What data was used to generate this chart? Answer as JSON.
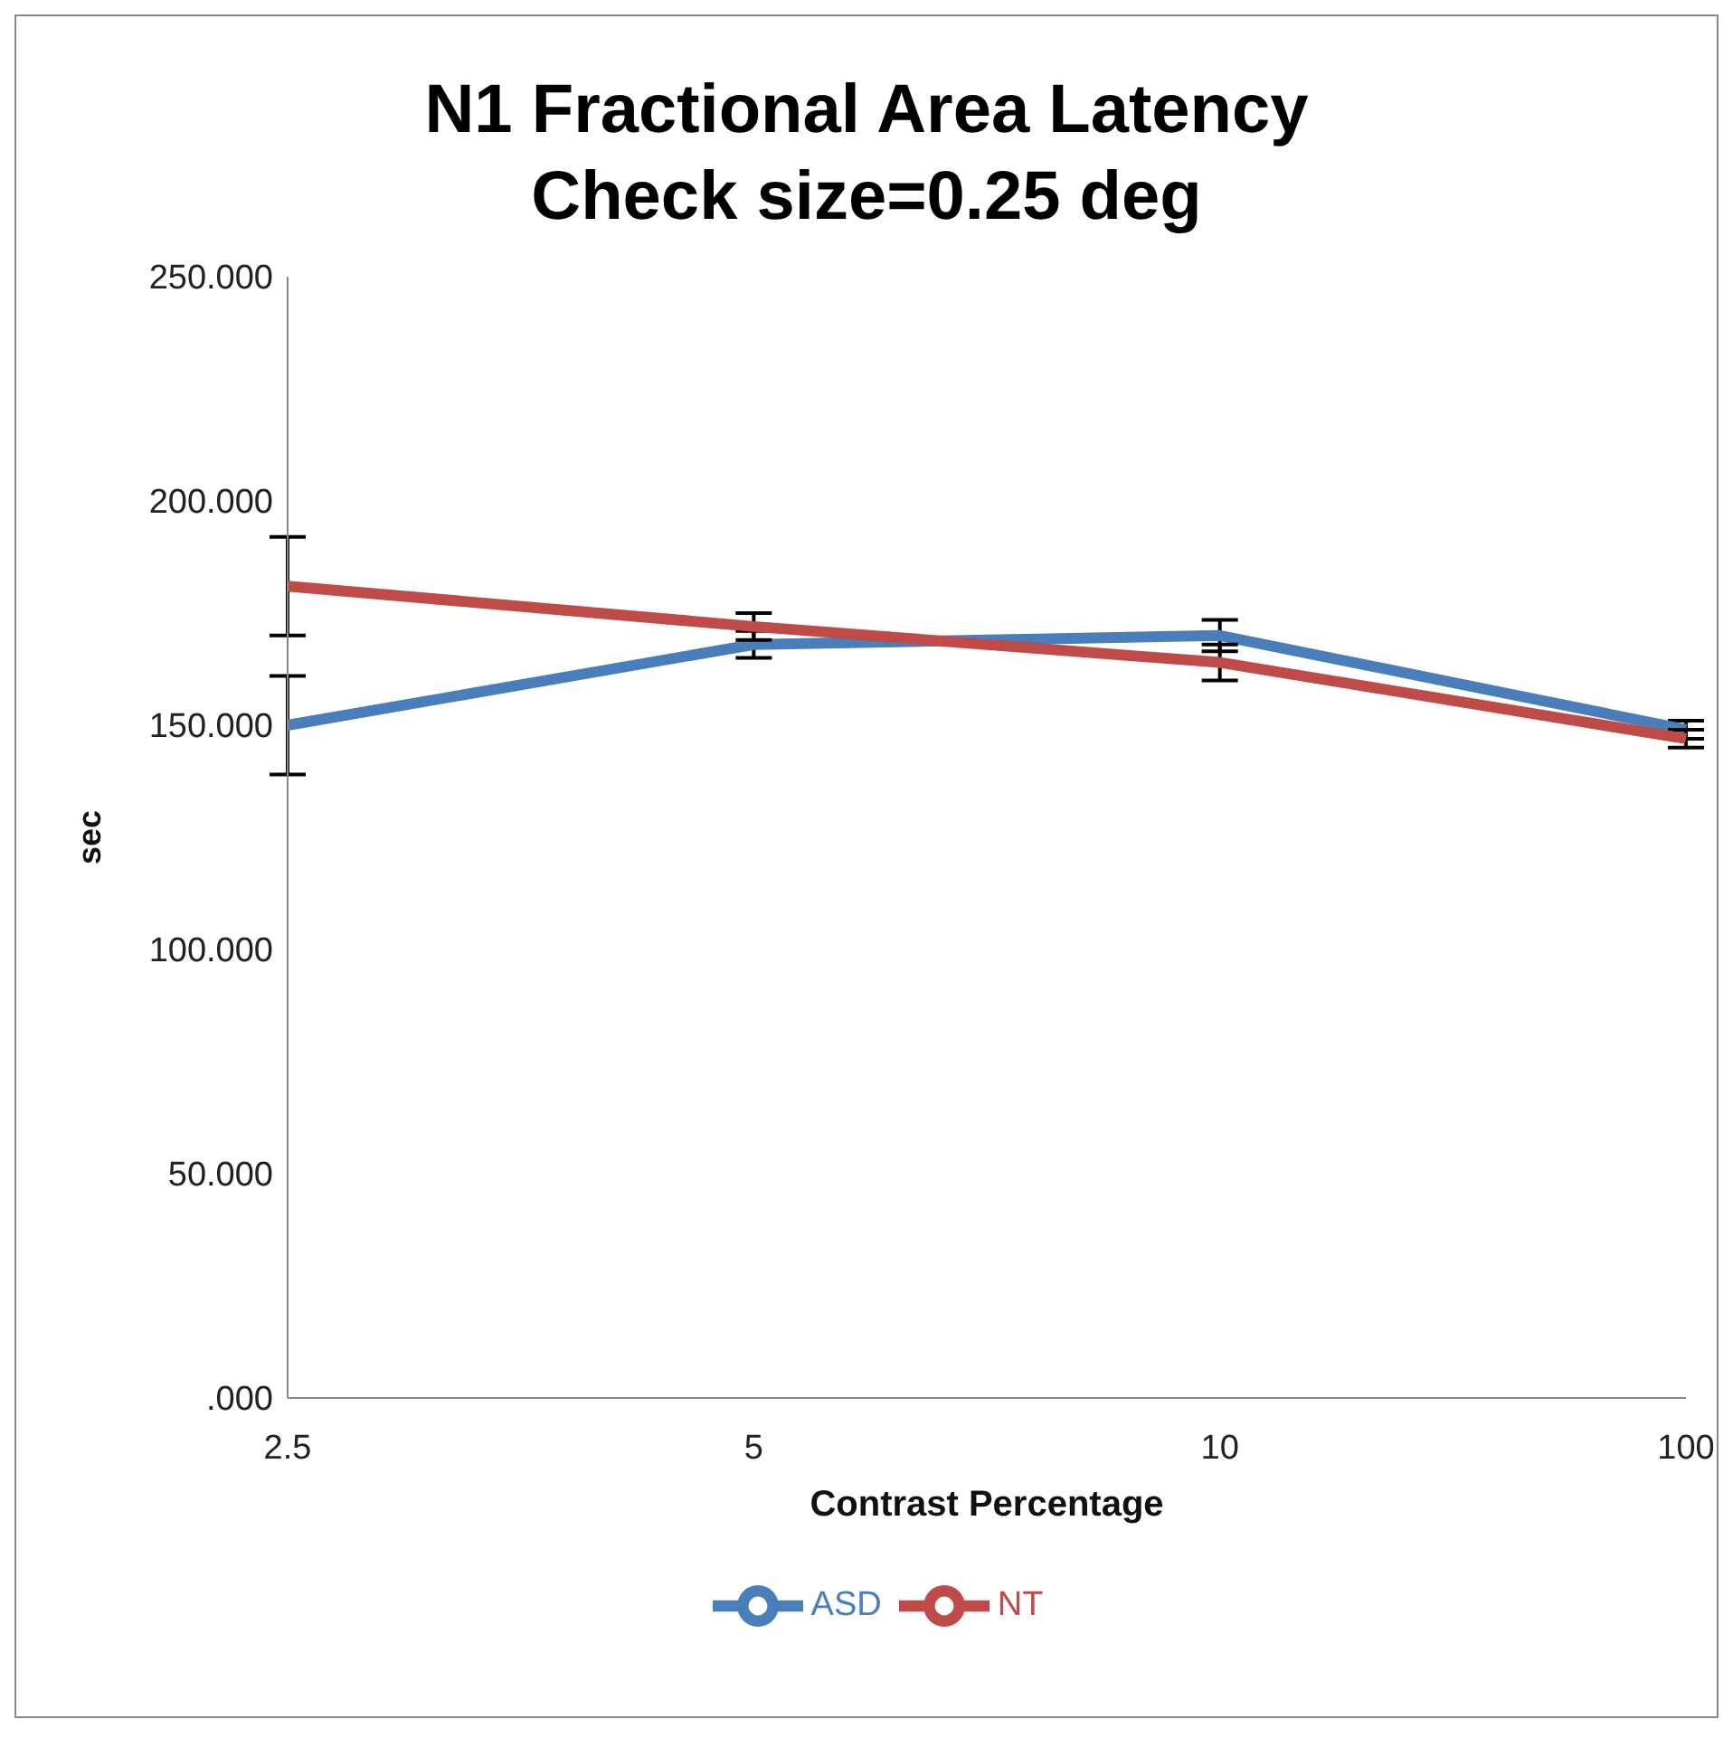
{
  "chart_data": {
    "type": "line",
    "title": "N1 Fractional Area Latency\nCheck size=0.25 deg",
    "xlabel": "Contrast Percentage",
    "ylabel": "sec",
    "categories": [
      "2.5",
      "5",
      "10",
      "100"
    ],
    "series": [
      {
        "name": "ASD",
        "color": "#4a7ebb",
        "values": [
          150,
          168,
          170,
          149
        ],
        "errors": [
          11,
          3,
          3.5,
          2
        ]
      },
      {
        "name": "NT",
        "color": "#be4b48",
        "values": [
          181,
          172,
          164,
          147
        ],
        "errors": [
          11,
          3,
          4,
          2
        ]
      }
    ],
    "ylim": [
      0,
      250
    ],
    "yticks": [
      {
        "value": 0,
        "label": ".000"
      },
      {
        "value": 50,
        "label": "50.000"
      },
      {
        "value": 100,
        "label": "100.000"
      },
      {
        "value": 150,
        "label": "150.000"
      },
      {
        "value": 200,
        "label": "200.000"
      },
      {
        "value": 250,
        "label": "250.000"
      }
    ],
    "grid": false,
    "legend": "bottom",
    "marker": "none"
  }
}
